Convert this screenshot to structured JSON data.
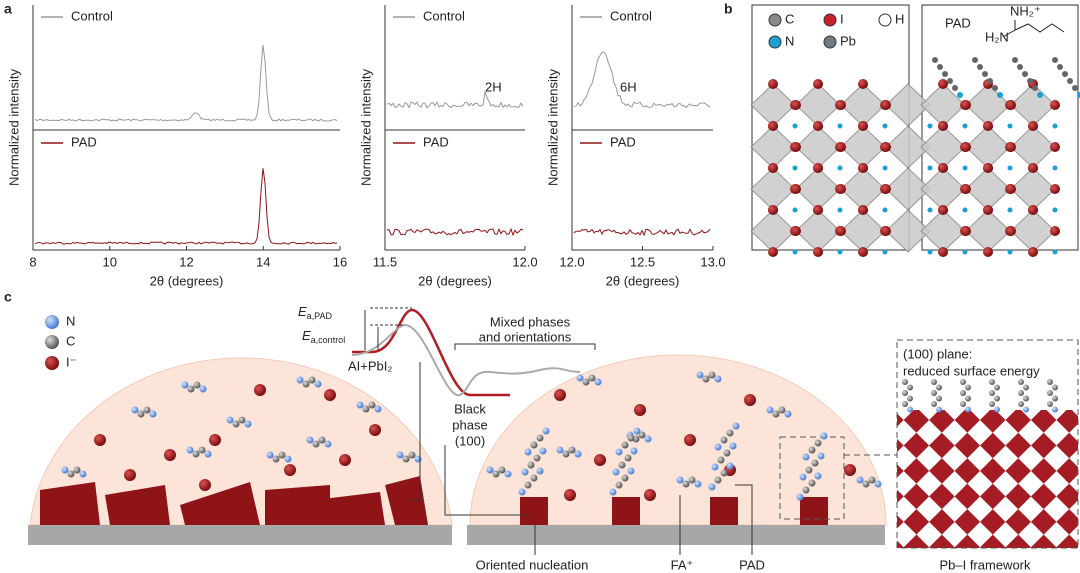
{
  "panel_a": {
    "label": "a",
    "plots": [
      {
        "ylabel": "Normalized intensity",
        "xlabel": "2θ (degrees)",
        "top_label": "Control",
        "bottom_label": "PAD",
        "xlim": [
          8,
          16
        ],
        "xticks": [
          8,
          10,
          12,
          14,
          16
        ]
      },
      {
        "ylabel": "Normalized intensity",
        "xlabel": "2θ (degrees)",
        "top_label": "Control",
        "bottom_label": "PAD",
        "annotation": "2H",
        "xlim": [
          11.5,
          12
        ],
        "xticks": [
          11.5,
          {
            "value": 12,
            "label": "12.0"
          }
        ]
      },
      {
        "ylabel": "Normalized intensity",
        "xlabel": "2θ (degrees)",
        "top_label": "Control",
        "bottom_label": "PAD",
        "annotation": "6H",
        "xlim": [
          12,
          13
        ],
        "xticks": [
          {
            "value": 12,
            "label": "12.0"
          },
          12.5,
          {
            "value": 13,
            "label": "13.0"
          }
        ]
      }
    ]
  },
  "panel_b": {
    "label": "b",
    "legend": [
      "C",
      "I",
      "H",
      "N",
      "Pb"
    ],
    "right_title": "PAD",
    "molecule": [
      "NH₂⁺",
      "H₂N"
    ]
  },
  "panel_c": {
    "label": "c",
    "legend": [
      "N",
      "C",
      "I⁻"
    ],
    "energy": {
      "ea_pad": "E",
      "ea_pad_sub": "a,PAD",
      "ea_control": "E",
      "ea_control_sub": "a,control",
      "start": "AI+PbI₂"
    },
    "mixed": [
      "Mixed phases",
      "and orientations"
    ],
    "black": [
      "Black",
      "phase",
      "(100)"
    ],
    "plane": [
      "(100) plane:",
      "reduced surface energy"
    ],
    "bottom": [
      "Oriented nucleation",
      "FA⁺",
      "PAD",
      "Pb–I framework"
    ]
  }
}
